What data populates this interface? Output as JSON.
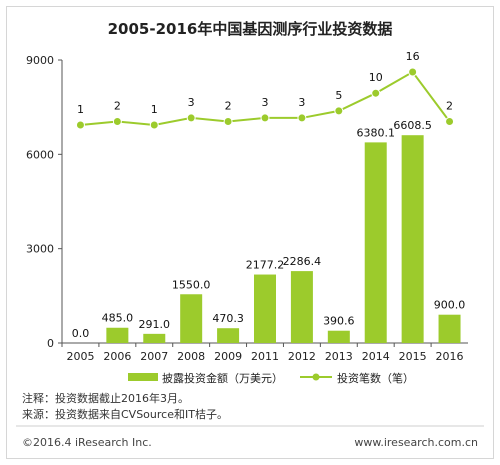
{
  "chart_data": {
    "type": "bar",
    "title": "2005-2016年中国基因测序行业投资数据",
    "categories": [
      "2005",
      "2006",
      "2007",
      "2008",
      "2009",
      "2011",
      "2012",
      "2013",
      "2014",
      "2015",
      "2016"
    ],
    "series": [
      {
        "name": "披露投资金额（万美元）",
        "type": "bar",
        "values": [
          0.0,
          485.0,
          291.0,
          1550.0,
          470.3,
          2177.2,
          2286.4,
          390.6,
          6380.1,
          6608.5,
          900.0
        ],
        "labels": [
          "0.0",
          "485.0",
          "291.0",
          "1550.0",
          "470.3",
          "2177.2",
          "2286.4",
          "390.6",
          "6380.1",
          "6608.5",
          "900.0"
        ],
        "color": "#9ccb2c"
      },
      {
        "name": "投资笔数（笔）",
        "type": "line",
        "values": [
          1,
          2,
          1,
          3,
          2,
          3,
          3,
          5,
          10,
          16,
          2
        ],
        "labels": [
          "1",
          "2",
          "1",
          "3",
          "2",
          "3",
          "3",
          "5",
          "10",
          "16",
          "2"
        ],
        "color": "#9ccb2c"
      }
    ],
    "yticks": [
      "0",
      "3000",
      "6000",
      "9000"
    ],
    "ylim": [
      0,
      9000
    ],
    "legend_position": "bottom"
  },
  "notes": {
    "note1": "注释：投资数据截止2016年3月。",
    "note2": "来源：投资数据来自CVSource和IT桔子。"
  },
  "footer": {
    "left": "©2016.4 iResearch Inc.",
    "right": "www.iresearch.com.cn"
  }
}
